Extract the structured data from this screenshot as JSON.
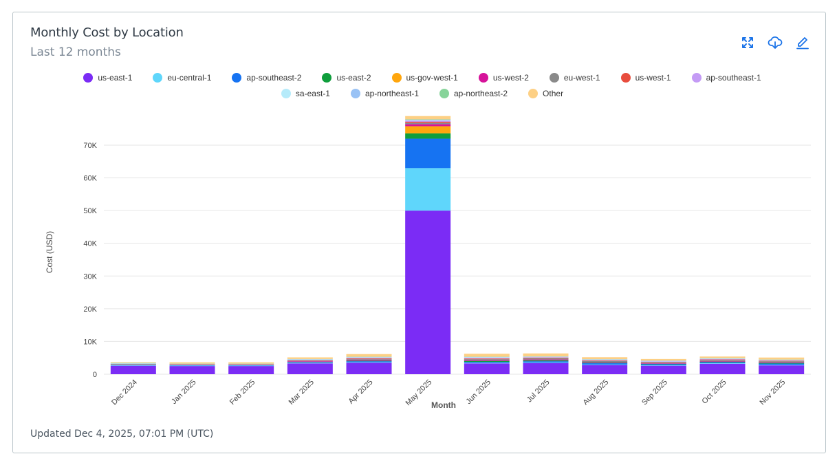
{
  "header": {
    "title": "Monthly Cost by Location",
    "subtitle": "Last 12 months"
  },
  "actions": [
    {
      "name": "expand-icon",
      "label": "Expand"
    },
    {
      "name": "download-icon",
      "label": "Download"
    },
    {
      "name": "edit-icon",
      "label": "Edit"
    }
  ],
  "footer": {
    "updated": "Updated Dec 4, 2025, 07:01 PM (UTC)"
  },
  "colors": {
    "accent": "#1a73e8",
    "grid": "#e6e6e6",
    "axis_text": "#444444"
  },
  "chart_data": {
    "type": "bar",
    "stacked": true,
    "xlabel": "Month",
    "ylabel": "Cost (USD)",
    "ylim": [
      0,
      78000
    ],
    "yticks": [
      0,
      10000,
      20000,
      30000,
      40000,
      50000,
      60000,
      70000
    ],
    "ytick_labels": [
      "0",
      "10K",
      "20K",
      "30K",
      "40K",
      "50K",
      "60K",
      "70K"
    ],
    "grid": true,
    "legend_position": "top",
    "categories": [
      "Dec 2024",
      "Jan 2025",
      "Feb 2025",
      "Mar 2025",
      "Apr 2025",
      "May 2025",
      "Jun 2025",
      "Jul 2025",
      "Aug 2025",
      "Sep 2025",
      "Oct 2025",
      "Nov 2025"
    ],
    "series": [
      {
        "name": "us-east-1",
        "color": "#7b2cf5",
        "values": [
          2600,
          2500,
          2500,
          3300,
          3500,
          50000,
          3300,
          3400,
          2800,
          2600,
          3200,
          2700
        ]
      },
      {
        "name": "eu-central-1",
        "color": "#5fd6fb",
        "values": [
          200,
          150,
          150,
          150,
          150,
          13000,
          150,
          150,
          150,
          150,
          150,
          150
        ]
      },
      {
        "name": "ap-southeast-2",
        "color": "#1673f2",
        "values": [
          100,
          80,
          80,
          200,
          300,
          9000,
          300,
          400,
          400,
          300,
          300,
          400
        ]
      },
      {
        "name": "us-east-2",
        "color": "#0f9e3c",
        "values": [
          100,
          50,
          50,
          100,
          200,
          1600,
          300,
          300,
          200,
          150,
          200,
          200
        ]
      },
      {
        "name": "us-gov-west-1",
        "color": "#ffa60d",
        "values": [
          0,
          0,
          0,
          0,
          0,
          2200,
          0,
          0,
          0,
          0,
          0,
          0
        ]
      },
      {
        "name": "us-west-2",
        "color": "#d6139a",
        "values": [
          50,
          80,
          80,
          200,
          300,
          600,
          250,
          250,
          200,
          150,
          200,
          200
        ]
      },
      {
        "name": "eu-west-1",
        "color": "#8a8a8a",
        "values": [
          50,
          80,
          80,
          150,
          250,
          400,
          300,
          400,
          300,
          250,
          300,
          300
        ]
      },
      {
        "name": "us-west-1",
        "color": "#e84d3d",
        "values": [
          50,
          100,
          100,
          150,
          200,
          350,
          200,
          150,
          150,
          150,
          150,
          150
        ]
      },
      {
        "name": "ap-southeast-1",
        "color": "#c49bf5",
        "values": [
          50,
          50,
          50,
          150,
          150,
          350,
          200,
          150,
          150,
          150,
          150,
          150
        ]
      },
      {
        "name": "sa-east-1",
        "color": "#b6ebfa",
        "values": [
          50,
          50,
          50,
          100,
          150,
          150,
          200,
          100,
          100,
          100,
          100,
          100
        ]
      },
      {
        "name": "ap-northeast-1",
        "color": "#99c2f5",
        "values": [
          50,
          50,
          50,
          100,
          100,
          150,
          100,
          100,
          100,
          100,
          100,
          100
        ]
      },
      {
        "name": "ap-northeast-2",
        "color": "#87d49a",
        "values": [
          150,
          50,
          50,
          50,
          50,
          100,
          50,
          50,
          50,
          50,
          50,
          50
        ]
      },
      {
        "name": "Other",
        "color": "#fdd085",
        "values": [
          200,
          400,
          400,
          500,
          800,
          1000,
          900,
          900,
          600,
          500,
          500,
          600
        ]
      }
    ]
  }
}
